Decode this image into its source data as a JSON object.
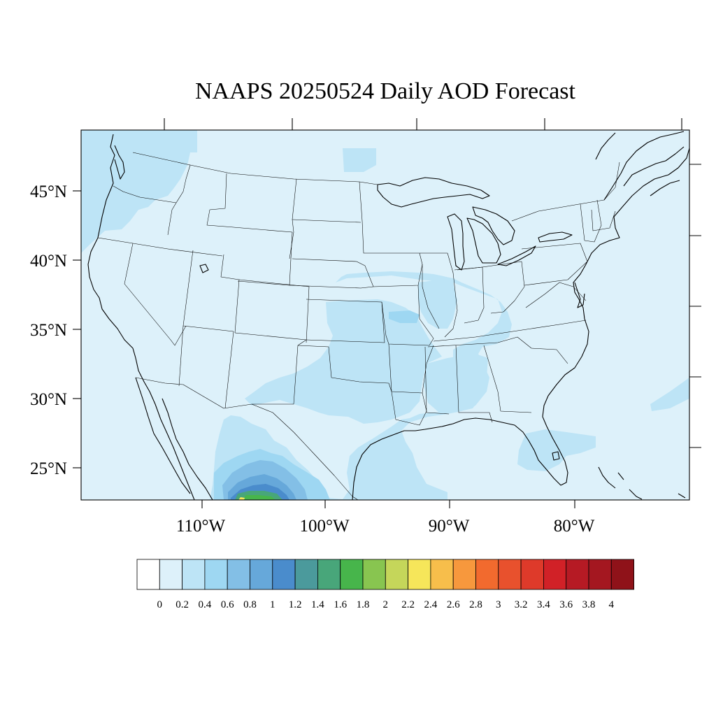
{
  "map": {
    "title": "NAAPS 20250524 Daily AOD Forecast",
    "variable": "AOD",
    "background_color": "#ddf1fa",
    "lat_labels": [
      "45°N",
      "40°N",
      "35°N",
      "30°N",
      "25°N"
    ],
    "lon_labels": [
      "110°W",
      "100°W",
      "90°W",
      "80°W"
    ]
  },
  "colorbar": {
    "labels": [
      "0",
      "0.2",
      "0.4",
      "0.6",
      "0.8",
      "1",
      "1.2",
      "1.4",
      "1.6",
      "1.8",
      "2",
      "2.2",
      "2.4",
      "2.6",
      "2.8",
      "3",
      "3.2",
      "3.4",
      "3.6",
      "3.8",
      "4"
    ],
    "colors": [
      "#ffffff",
      "#ddf1fa",
      "#bde4f6",
      "#9ed7f2",
      "#83bfe6",
      "#66a8da",
      "#4a8ccc",
      "#4b9a9c",
      "#48a67a",
      "#47b54b",
      "#88c550",
      "#c5d65a",
      "#f6e65a",
      "#f7be4b",
      "#f7983d",
      "#f26a2e",
      "#e8512d",
      "#de3a2a",
      "#d12127",
      "#b61a24",
      "#a41720",
      "#8f1219"
    ]
  },
  "aod_plumes": [
    {
      "region": "Pacific Northwest",
      "level": 0.2,
      "color": "#bde4f6"
    },
    {
      "region": "Central Plains to Mississippi Valley",
      "level": 0.2,
      "color": "#bde4f6"
    },
    {
      "region": "South Texas and northern Mexico",
      "level": 0.4,
      "color": "#9ed7f2"
    },
    {
      "region": "Northern Mexico core",
      "level": 1.6,
      "color": "#47b54b"
    },
    {
      "region": "Florida and Gulf coast",
      "level": 0.2,
      "color": "#bde4f6"
    }
  ]
}
